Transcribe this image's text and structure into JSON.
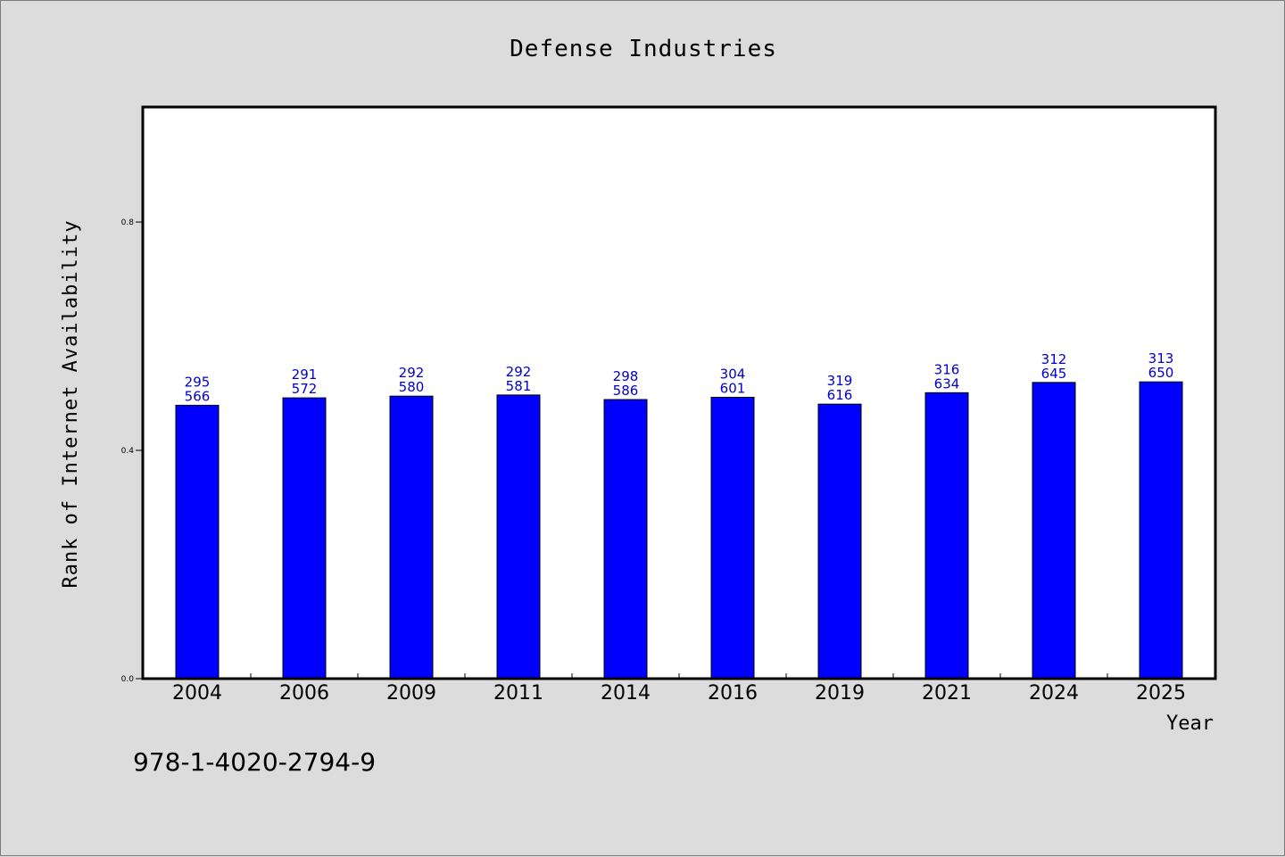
{
  "chart_data": {
    "type": "bar",
    "title": "Defense Industries",
    "xlabel": "Year",
    "ylabel": "Rank of Internet Availability",
    "categories": [
      "2004",
      "2006",
      "2009",
      "2011",
      "2014",
      "2016",
      "2019",
      "2021",
      "2024",
      "2025"
    ],
    "values": [
      0.479,
      0.492,
      0.495,
      0.497,
      0.489,
      0.493,
      0.481,
      0.501,
      0.519,
      0.52
    ],
    "label_top": [
      "295",
      "291",
      "292",
      "292",
      "298",
      "304",
      "319",
      "316",
      "312",
      "313"
    ],
    "label_bottom": [
      "566",
      "572",
      "580",
      "581",
      "586",
      "601",
      "616",
      "634",
      "645",
      "650"
    ],
    "ylim": [
      0,
      1.0
    ],
    "yticks": [
      0.0,
      0.4,
      0.8
    ],
    "ytick_labels": [
      "0.0",
      "0.4",
      "0.8"
    ],
    "grid": false,
    "legend": "none",
    "bar_color": "#0000ff",
    "label_color": "#0000cc"
  },
  "footnote": "978-1-4020-2794-9"
}
